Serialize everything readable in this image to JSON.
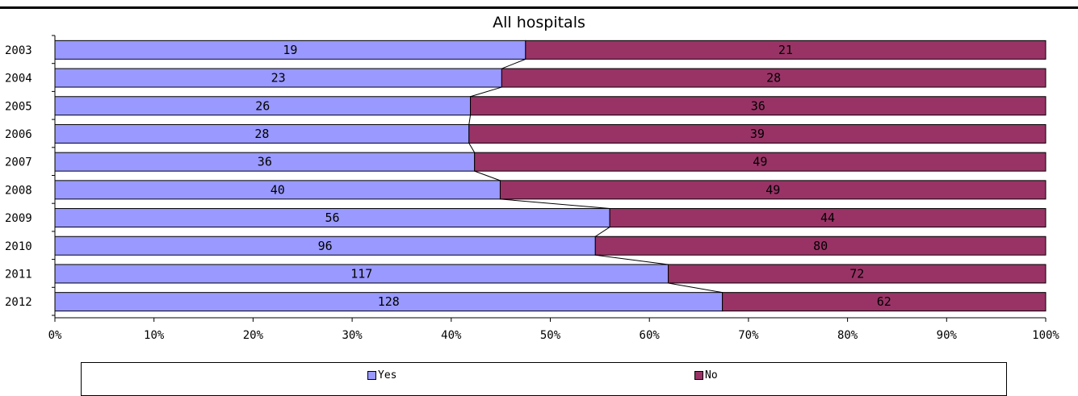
{
  "header_fragment": "...) ... g ... (...)",
  "chart_data": {
    "type": "bar",
    "orientation": "horizontal",
    "stacking": "percent",
    "title": "All hospitals",
    "categories": [
      "2003",
      "2004",
      "2005",
      "2006",
      "2007",
      "2008",
      "2009",
      "2010",
      "2011",
      "2012"
    ],
    "series": [
      {
        "name": "Yes",
        "color": "#9999ff",
        "values": [
          19,
          23,
          26,
          28,
          36,
          40,
          56,
          96,
          117,
          128
        ]
      },
      {
        "name": "No",
        "color": "#993366",
        "values": [
          21,
          28,
          36,
          39,
          49,
          49,
          44,
          80,
          72,
          62
        ]
      }
    ],
    "x_ticks": [
      "0%",
      "10%",
      "20%",
      "30%",
      "40%",
      "50%",
      "60%",
      "70%",
      "80%",
      "90%",
      "100%"
    ],
    "xlim": [
      0,
      100
    ],
    "series_lines": true,
    "grid": false,
    "legend": "bottom"
  }
}
